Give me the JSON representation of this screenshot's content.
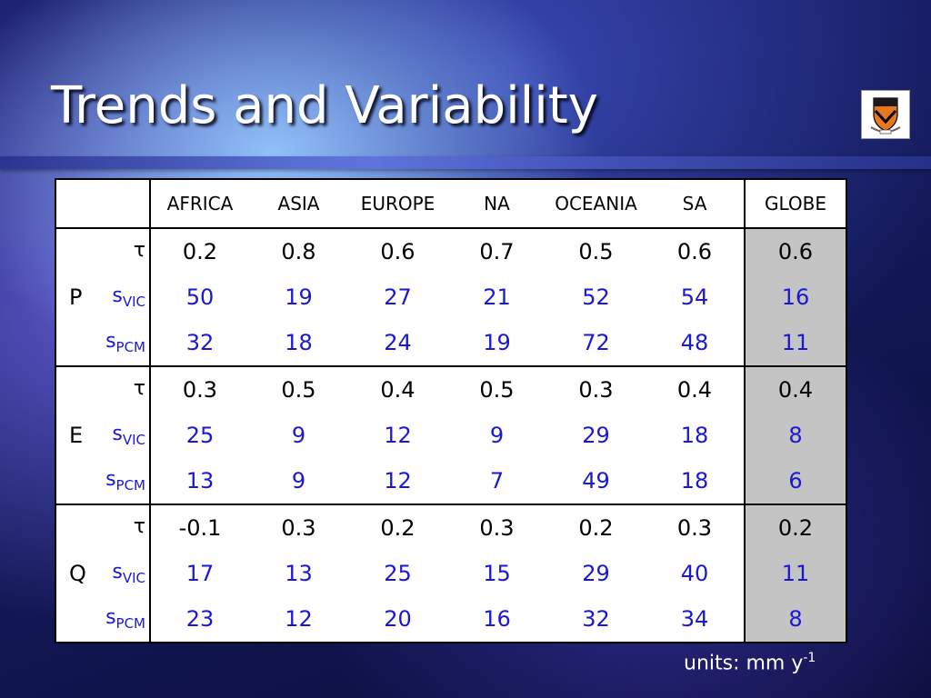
{
  "slide": {
    "title": "Trends and Variability",
    "units_prefix": "units: mm y",
    "units_exp": "-1"
  },
  "table": {
    "columns": [
      "AFRICA",
      "ASIA",
      "EUROPE",
      "NA",
      "OCEANIA",
      "SA",
      "GLOBE"
    ],
    "groups": [
      {
        "name": "P",
        "rows": [
          {
            "symbol": "τ",
            "sub": "",
            "values": [
              "0.2",
              "0.8",
              "0.6",
              "0.7",
              "0.5",
              "0.6",
              "0.6"
            ]
          },
          {
            "symbol": "s",
            "sub": "VIC",
            "values": [
              "50",
              "19",
              "27",
              "21",
              "52",
              "54",
              "16"
            ]
          },
          {
            "symbol": "s",
            "sub": "PCM",
            "values": [
              "32",
              "18",
              "24",
              "19",
              "72",
              "48",
              "11"
            ]
          }
        ]
      },
      {
        "name": "E",
        "rows": [
          {
            "symbol": "τ",
            "sub": "",
            "values": [
              "0.3",
              "0.5",
              "0.4",
              "0.5",
              "0.3",
              "0.4",
              "0.4"
            ]
          },
          {
            "symbol": "s",
            "sub": "VIC",
            "values": [
              "25",
              "9",
              "12",
              "9",
              "29",
              "18",
              "8"
            ]
          },
          {
            "symbol": "s",
            "sub": "PCM",
            "values": [
              "13",
              "9",
              "12",
              "7",
              "49",
              "18",
              "6"
            ]
          }
        ]
      },
      {
        "name": "Q",
        "rows": [
          {
            "symbol": "τ",
            "sub": "",
            "values": [
              "-0.1",
              "0.3",
              "0.2",
              "0.3",
              "0.2",
              "0.3",
              "0.2"
            ]
          },
          {
            "symbol": "s",
            "sub": "VIC",
            "values": [
              "17",
              "13",
              "25",
              "15",
              "29",
              "40",
              "11"
            ]
          },
          {
            "symbol": "s",
            "sub": "PCM",
            "values": [
              "23",
              "12",
              "20",
              "16",
              "32",
              "34",
              "8"
            ]
          }
        ]
      }
    ]
  },
  "colors": {
    "value_blue": "#1a17d6",
    "globe_shade": "#c4c4c4",
    "shield_orange": "#e8781e"
  },
  "icons": [
    "princeton-shield-logo"
  ]
}
